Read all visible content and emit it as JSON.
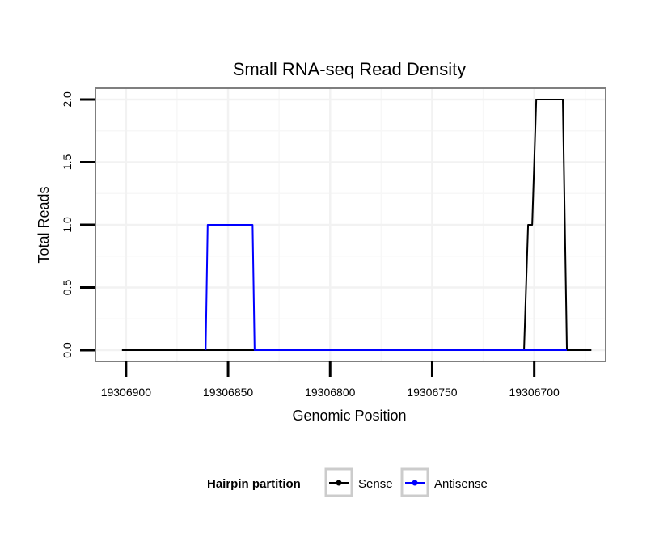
{
  "chart_data": {
    "type": "line",
    "title": "Small RNA-seq Read Density",
    "xlabel": "Genomic Position",
    "ylabel": "Total Reads",
    "x_reversed": true,
    "xlim": [
      19306915,
      19306665
    ],
    "ylim": [
      -0.09,
      2.09
    ],
    "x_ticks": [
      19306900,
      19306850,
      19306800,
      19306750,
      19306700
    ],
    "x_tick_labels": [
      "19306900",
      "19306850",
      "19306800",
      "19306750",
      "19306700"
    ],
    "y_ticks": [
      0,
      0.5,
      1,
      1.5,
      2
    ],
    "y_tick_labels": [
      "0.0",
      "0.5",
      "1.0",
      "1.5",
      "2.0"
    ],
    "grid": true,
    "legend": {
      "title": "Hairpin partition",
      "position": "bottom"
    },
    "series": [
      {
        "name": "Sense",
        "color": "#000000",
        "x": [
          19306902,
          19306705,
          19306703,
          19306701,
          19306699,
          19306686,
          19306684,
          19306672
        ],
        "y": [
          0,
          0,
          1,
          1,
          2,
          2,
          0,
          0
        ]
      },
      {
        "name": "Antisense",
        "color": "#0000ff",
        "x": [
          19306861,
          19306860,
          19306838,
          19306837,
          19306703,
          19306684
        ],
        "y": [
          0,
          1,
          1,
          0,
          0,
          0
        ]
      }
    ]
  }
}
